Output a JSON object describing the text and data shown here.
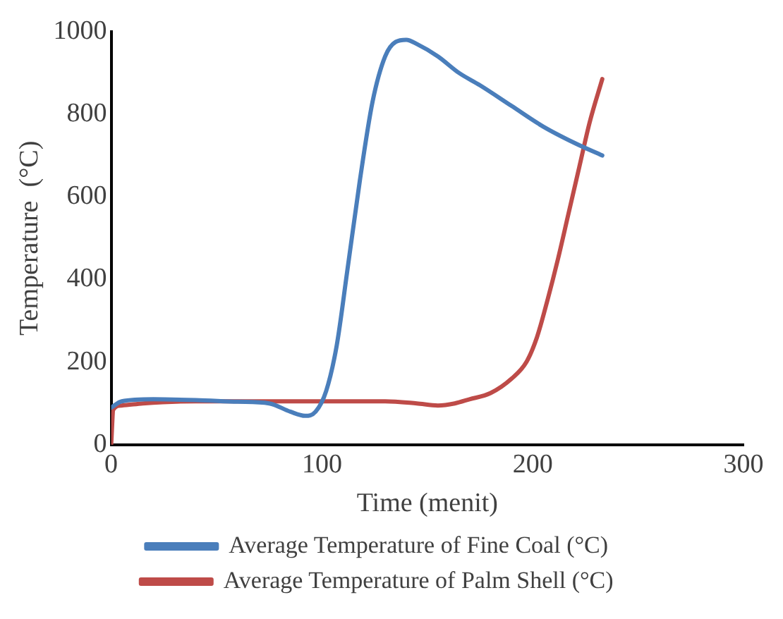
{
  "chart_data": {
    "type": "line",
    "xlabel": "Time (menit)",
    "ylabel": "Temperature  (°C)",
    "xlim": [
      0,
      300
    ],
    "xticks": [
      0,
      100,
      200,
      300
    ],
    "ylim": [
      0,
      1000
    ],
    "yticks": [
      0,
      200,
      400,
      600,
      800,
      1000
    ],
    "grid": false,
    "legend": "bottom",
    "marker": "none",
    "line_style": "solid",
    "series": [
      {
        "name": "Average Temperature of Fine Coal (°C)",
        "color": "#4a7ebb",
        "x": [
          0,
          5,
          20,
          40,
          60,
          75,
          85,
          92,
          97,
          102,
          107,
          112,
          118,
          124,
          130,
          135,
          140,
          145,
          155,
          165,
          175,
          190,
          205,
          220,
          233
        ],
        "values": [
          90,
          105,
          110,
          108,
          104,
          100,
          80,
          70,
          80,
          130,
          240,
          420,
          640,
          830,
          940,
          975,
          980,
          970,
          940,
          900,
          870,
          820,
          770,
          730,
          700
        ]
      },
      {
        "name": "Average Temperature of Palm Shell (°C)",
        "color": "#be4b48",
        "x": [
          0,
          1,
          5,
          15,
          40,
          80,
          130,
          145,
          155,
          163,
          170,
          180,
          190,
          197,
          202,
          207,
          212,
          217,
          222,
          227,
          233
        ],
        "values": [
          0,
          85,
          95,
          100,
          105,
          105,
          105,
          100,
          95,
          100,
          110,
          125,
          160,
          200,
          260,
          350,
          450,
          560,
          670,
          780,
          885
        ]
      }
    ]
  }
}
